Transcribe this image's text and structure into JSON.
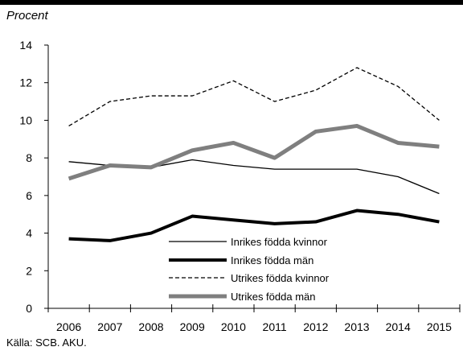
{
  "ylabel": "Procent",
  "source": "Källa: SCB. AKU.",
  "chart_data": {
    "type": "line",
    "title": "",
    "xlabel": "",
    "ylabel": "Procent",
    "x": [
      2006,
      2007,
      2008,
      2009,
      2010,
      2011,
      2012,
      2013,
      2014,
      2015
    ],
    "ylim": [
      0,
      14
    ],
    "yticks": [
      0,
      2,
      4,
      6,
      8,
      10,
      12,
      14
    ],
    "grid": false,
    "legend": "bottom-center",
    "series": [
      {
        "name": "Inrikes födda kvinnor",
        "style": "thin-solid",
        "values": [
          7.8,
          7.6,
          7.5,
          7.9,
          7.6,
          7.4,
          7.4,
          7.4,
          7.0,
          6.1
        ]
      },
      {
        "name": "Inrikes födda män",
        "style": "thick-solid",
        "values": [
          3.7,
          3.6,
          4.0,
          4.9,
          4.7,
          4.5,
          4.6,
          5.2,
          5.0,
          4.6
        ]
      },
      {
        "name": "Utrikes födda kvinnor",
        "style": "dashed",
        "values": [
          9.7,
          11.0,
          11.3,
          11.3,
          12.1,
          11.0,
          11.6,
          12.8,
          11.8,
          10.0
        ]
      },
      {
        "name": "Utrikes födda män",
        "style": "thick-gray",
        "values": [
          6.9,
          7.6,
          7.5,
          8.4,
          8.8,
          8.0,
          9.4,
          9.7,
          8.8,
          8.6
        ]
      }
    ],
    "colors": {
      "black": "#000000",
      "gray": "#7f7f7f"
    }
  }
}
